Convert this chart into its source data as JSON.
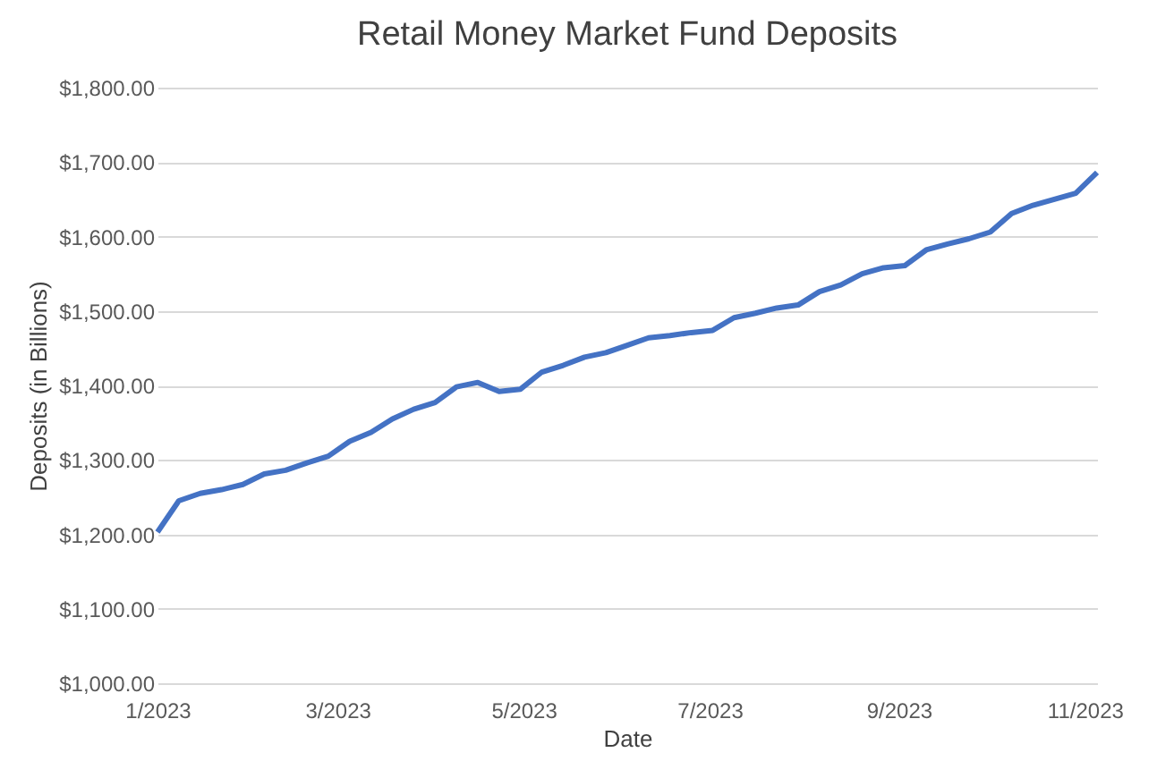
{
  "chart_data": {
    "type": "line",
    "title": "Retail Money Market Fund Deposits",
    "xlabel": "Date",
    "ylabel": "Deposits (in Billions)",
    "x": [
      "2023-01-01",
      "2023-01-08",
      "2023-01-15",
      "2023-01-22",
      "2023-01-29",
      "2023-02-05",
      "2023-02-12",
      "2023-02-19",
      "2023-02-26",
      "2023-03-05",
      "2023-03-12",
      "2023-03-19",
      "2023-03-26",
      "2023-04-02",
      "2023-04-09",
      "2023-04-16",
      "2023-04-23",
      "2023-04-30",
      "2023-05-07",
      "2023-05-14",
      "2023-05-21",
      "2023-05-28",
      "2023-06-04",
      "2023-06-11",
      "2023-06-18",
      "2023-06-25",
      "2023-07-02",
      "2023-07-09",
      "2023-07-16",
      "2023-07-23",
      "2023-07-30",
      "2023-08-06",
      "2023-08-13",
      "2023-08-20",
      "2023-08-27",
      "2023-09-03",
      "2023-09-10",
      "2023-09-17",
      "2023-09-24",
      "2023-10-01",
      "2023-10-08",
      "2023-10-15",
      "2023-10-22",
      "2023-10-29",
      "2023-11-05"
    ],
    "series": [
      {
        "color": "#4472c4",
        "values": [
          1203,
          1245,
          1255,
          1260,
          1267,
          1281,
          1286,
          1296,
          1305,
          1325,
          1337,
          1355,
          1368,
          1377,
          1398,
          1404,
          1392,
          1395,
          1418,
          1427,
          1438,
          1444,
          1454,
          1464,
          1467,
          1471,
          1474,
          1491,
          1497,
          1504,
          1508,
          1526,
          1535,
          1550,
          1558,
          1561,
          1582,
          1590,
          1597,
          1606,
          1631,
          1642,
          1650,
          1658,
          1686
        ]
      }
    ],
    "xlim": [
      "2023-01-01",
      "2023-11-05"
    ],
    "xticks": [
      {
        "value": "2023-01-01",
        "label": "1/2023"
      },
      {
        "value": "2023-03-01",
        "label": "3/2023"
      },
      {
        "value": "2023-05-01",
        "label": "5/2023"
      },
      {
        "value": "2023-07-01",
        "label": "7/2023"
      },
      {
        "value": "2023-09-01",
        "label": "9/2023"
      },
      {
        "value": "2023-11-01",
        "label": "11/2023"
      }
    ],
    "ylim": [
      1000,
      1800
    ],
    "yticks": [
      {
        "value": 1000,
        "label": "$1,000.00"
      },
      {
        "value": 1100,
        "label": "$1,100.00"
      },
      {
        "value": 1200,
        "label": "$1,200.00"
      },
      {
        "value": 1300,
        "label": "$1,300.00"
      },
      {
        "value": 1400,
        "label": "$1,400.00"
      },
      {
        "value": 1500,
        "label": "$1,500.00"
      },
      {
        "value": 1600,
        "label": "$1,600.00"
      },
      {
        "value": 1700,
        "label": "$1,700.00"
      },
      {
        "value": 1800,
        "label": "$1,800.00"
      }
    ],
    "grid": "y",
    "legend": false,
    "marker": "none",
    "line_style": "solid"
  }
}
